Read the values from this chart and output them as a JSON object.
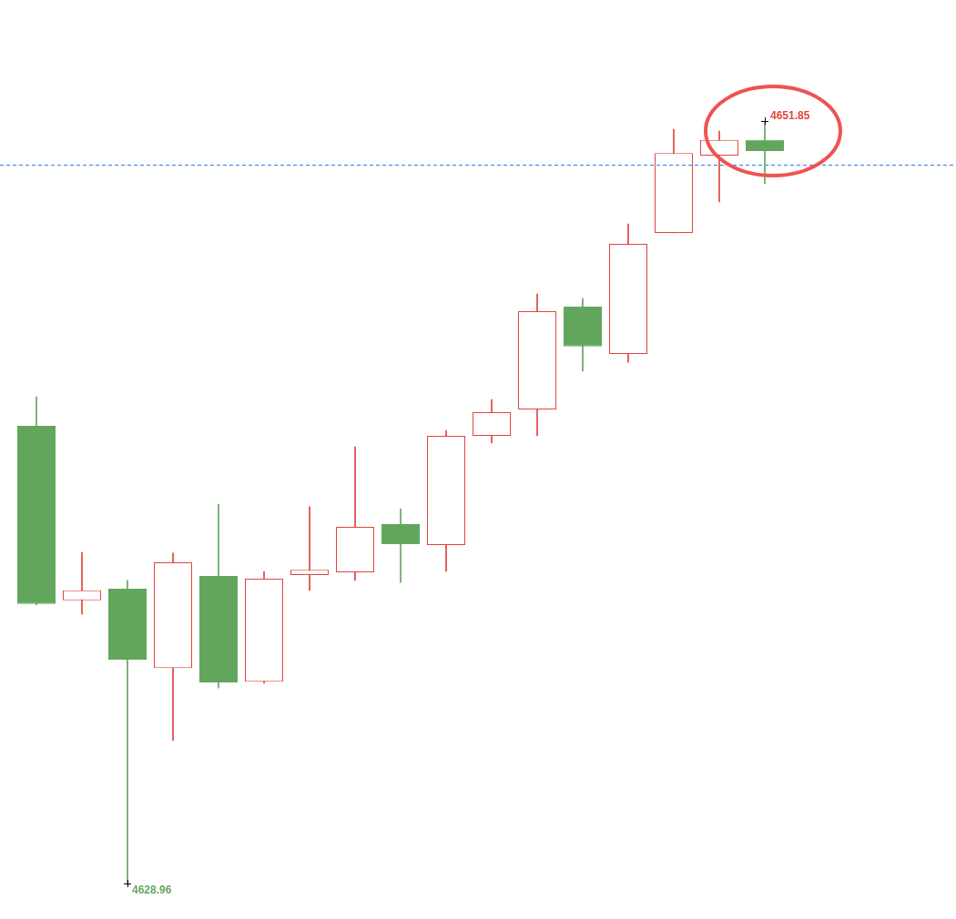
{
  "chart_data": {
    "type": "candlestick",
    "categories": [
      null,
      null,
      null,
      null,
      null,
      null,
      null,
      null,
      null,
      null,
      null,
      null,
      null,
      null,
      null,
      null,
      null
    ],
    "ohlc": [
      [
        4642.7,
        4643.57,
        4637.32,
        4637.35
      ],
      [
        4637.46,
        4638.9,
        4637.05,
        4637.76
      ],
      [
        4637.81,
        4638.06,
        4628.96,
        4635.68
      ],
      [
        4635.43,
        4638.88,
        4633.25,
        4638.6
      ],
      [
        4638.19,
        4640.35,
        4634.83,
        4635.0
      ],
      [
        4635.02,
        4638.33,
        4634.97,
        4638.11
      ],
      [
        4638.22,
        4640.27,
        4637.76,
        4638.38
      ],
      [
        4638.3,
        4642.07,
        4638.06,
        4639.67
      ],
      [
        4639.75,
        4640.21,
        4638.0,
        4639.15
      ],
      [
        4639.12,
        4642.56,
        4638.33,
        4642.4
      ],
      [
        4642.4,
        4643.49,
        4642.18,
        4643.11
      ],
      [
        4643.19,
        4646.66,
        4642.4,
        4646.14
      ],
      [
        4646.28,
        4646.52,
        4644.34,
        4645.08
      ],
      [
        4644.86,
        4648.76,
        4644.61,
        4648.16
      ],
      [
        4648.49,
        4651.6,
        4648.49,
        4650.89
      ],
      [
        4650.81,
        4651.55,
        4649.42,
        4651.28
      ],
      [
        4651.28,
        4651.85,
        4649.97,
        4650.95
      ]
    ],
    "colors": [
      "#62a65d",
      "#e0443c",
      "#62a65d",
      "#e0443c",
      "#62a65d",
      "#e0443c",
      "#e0443c",
      "#e0443c",
      "#62a65d",
      "#e0443c",
      "#e0443c",
      "#e0443c",
      "#62a65d",
      "#e0443c",
      "#e0443c",
      "#e0443c",
      "#62a65d"
    ],
    "tick_labels": false,
    "ref_lines": [
      {
        "axis": "y",
        "value": 4650.54,
        "color": "#2f7fe0",
        "line_style": "dashed"
      }
    ],
    "annotations": [
      "4651.85",
      "4628.96"
    ]
  }
}
